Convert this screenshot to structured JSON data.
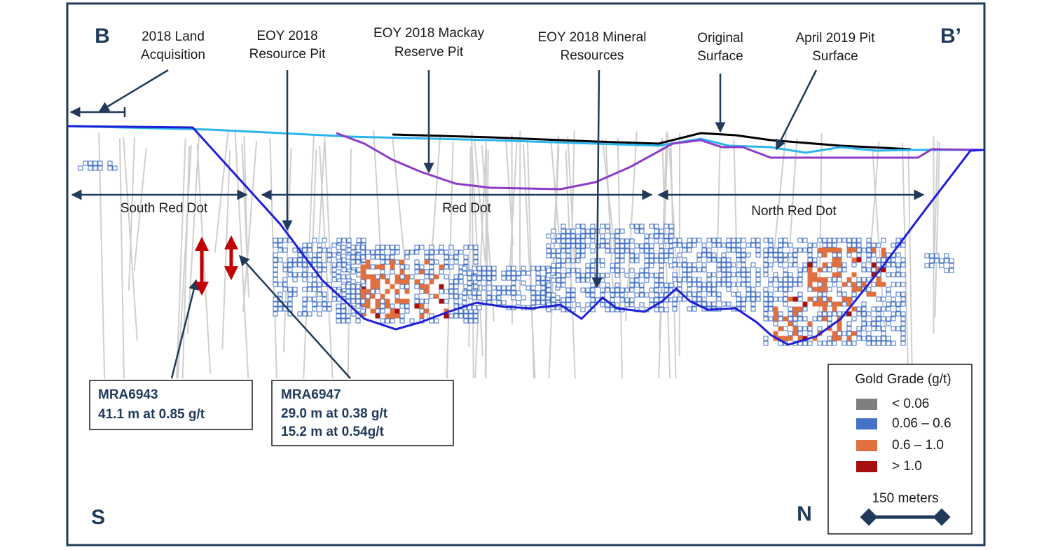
{
  "section": {
    "left_label": "B",
    "right_label": "B’",
    "bottom_left": "S",
    "bottom_right": "N"
  },
  "annotations": [
    {
      "lines": [
        "2018 Land",
        "Acquisition"
      ]
    },
    {
      "lines": [
        "EOY 2018",
        "Resource Pit"
      ]
    },
    {
      "lines": [
        "EOY 2018 Mackay",
        "Reserve Pit"
      ]
    },
    {
      "lines": [
        "EOY 2018 Mineral",
        "Resources"
      ]
    },
    {
      "lines": [
        "Original",
        "Surface"
      ]
    },
    {
      "lines": [
        "April 2019 Pit",
        "Surface"
      ]
    }
  ],
  "zones": [
    "South Red Dot",
    "Red Dot",
    "North Red Dot"
  ],
  "callouts": [
    {
      "title": "MRA6943",
      "lines": [
        "41.1 m at 0.85 g/t"
      ]
    },
    {
      "title": "MRA6947",
      "lines": [
        "29.0 m at 0.38 g/t",
        "15.2 m at 0.54g/t"
      ]
    }
  ],
  "legend": {
    "title": "Gold Grade (g/t)",
    "items": [
      {
        "label": "< 0.06",
        "color": "#7f7f7f"
      },
      {
        "label": "0.06 – 0.6",
        "color": "#4472c4"
      },
      {
        "label": "0.6 – 1.0",
        "color": "#e07040"
      },
      {
        "label": "> 1.0",
        "color": "#a50f0f"
      }
    ],
    "scale": "150 meters"
  }
}
